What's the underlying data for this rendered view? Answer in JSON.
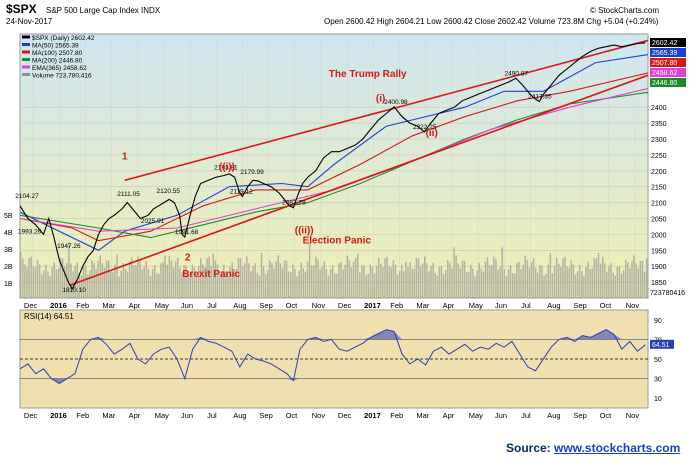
{
  "header": {
    "symbol": "$SPX",
    "name": "S&P 500 Large Cap Index INDX",
    "date": "24-Nov-2017",
    "ohlc": "Open 2600.42  High 2604.21  Low 2600.42  Close 2602.42  Volume 723.8M  Chg +5.04 (+0.24%)",
    "credit": "© StockCharts.com",
    "legend": [
      {
        "label": "$SPX (Daily) 2602.42",
        "color": "#000000"
      },
      {
        "label": "MA(50) 2565.39",
        "color": "#1a3fd6"
      },
      {
        "label": "MA(100) 2507.80",
        "color": "#d41a1a"
      },
      {
        "label": "MA(200) 2446.80",
        "color": "#1f8a2a"
      },
      {
        "label": "EMA(365) 2458.62",
        "color": "#e23fd6"
      },
      {
        "label": "Volume 723,780,416",
        "color": "#8f8f8f"
      }
    ]
  },
  "source": {
    "prefix": "Source: ",
    "link": "www.stockcharts.com"
  },
  "chart_data": [
    {
      "type": "line",
      "title": "$SPX (Daily)",
      "xlabel": "",
      "ylabel": "",
      "x_ticks": [
        "Dec",
        "2016",
        "Feb",
        "Mar",
        "Apr",
        "May",
        "Jun",
        "Jul",
        "Aug",
        "Sep",
        "Oct",
        "Nov",
        "Dec",
        "2017",
        "Feb",
        "Mar",
        "Apr",
        "May",
        "Jun",
        "Jul",
        "Aug",
        "Sep",
        "Oct",
        "Nov"
      ],
      "y_ticks": [
        1850,
        1900,
        1950,
        2000,
        2050,
        2100,
        2150,
        2200,
        2250,
        2300,
        2350,
        2400
      ],
      "ylim": [
        1800,
        2630
      ],
      "grid": true,
      "background_colors": {
        "top": "#cfe6f2",
        "bottom": "#f0f0b0"
      },
      "x_range_months": [
        0,
        24
      ],
      "price_series": {
        "name": "$SPX (Daily)",
        "color": "#000000",
        "points": [
          [
            0,
            2090
          ],
          [
            0.3,
            2050
          ],
          [
            0.6,
            2030
          ],
          [
            0.9,
            2000
          ],
          [
            1.1,
            2050
          ],
          [
            1.3,
            1990
          ],
          [
            1.5,
            1920
          ],
          [
            1.7,
            1880
          ],
          [
            1.85,
            1850
          ],
          [
            2.0,
            1829.1
          ],
          [
            2.2,
            1860
          ],
          [
            2.4,
            1900
          ],
          [
            2.6,
            1930
          ],
          [
            2.8,
            1950
          ],
          [
            3.0,
            2000
          ],
          [
            3.2,
            2030
          ],
          [
            3.4,
            2050
          ],
          [
            3.6,
            2060
          ],
          [
            3.9,
            2080
          ],
          [
            4.1,
            2100
          ],
          [
            4.3,
            2080
          ],
          [
            4.6,
            2050
          ],
          [
            4.9,
            2060
          ],
          [
            5.1,
            2080
          ],
          [
            5.3,
            2090
          ],
          [
            5.5,
            2100
          ],
          [
            5.7,
            2110
          ],
          [
            5.9,
            2100
          ],
          [
            6.1,
            2060
          ],
          [
            6.2,
            2000
          ],
          [
            6.3,
            1991.68
          ],
          [
            6.5,
            2060
          ],
          [
            6.7,
            2120
          ],
          [
            6.9,
            2160
          ],
          [
            7.2,
            2170
          ],
          [
            7.5,
            2180
          ],
          [
            7.8,
            2185
          ],
          [
            8.0,
            2190.1
          ],
          [
            8.2,
            2180
          ],
          [
            8.4,
            2130
          ],
          [
            8.5,
            2119.12
          ],
          [
            8.7,
            2150
          ],
          [
            8.9,
            2170
          ],
          [
            9.1,
            2168
          ],
          [
            9.3,
            2160
          ],
          [
            9.6,
            2150
          ],
          [
            9.9,
            2130
          ],
          [
            10.1,
            2110
          ],
          [
            10.3,
            2090
          ],
          [
            10.45,
            2083.79
          ],
          [
            10.6,
            2120
          ],
          [
            10.8,
            2160
          ],
          [
            11.0,
            2180
          ],
          [
            11.3,
            2200
          ],
          [
            11.6,
            2240
          ],
          [
            11.9,
            2260
          ],
          [
            12.2,
            2260
          ],
          [
            12.5,
            2270
          ],
          [
            12.8,
            2280
          ],
          [
            13.1,
            2300
          ],
          [
            13.4,
            2330
          ],
          [
            13.7,
            2360
          ],
          [
            14.0,
            2380
          ],
          [
            14.3,
            2400.98
          ],
          [
            14.6,
            2370
          ],
          [
            14.9,
            2350
          ],
          [
            15.2,
            2340
          ],
          [
            15.45,
            2322.25
          ],
          [
            15.7,
            2350
          ],
          [
            16.0,
            2380
          ],
          [
            16.3,
            2390
          ],
          [
            16.6,
            2400
          ],
          [
            16.9,
            2420
          ],
          [
            17.2,
            2430
          ],
          [
            17.5,
            2440
          ],
          [
            17.8,
            2450
          ],
          [
            18.1,
            2460
          ],
          [
            18.4,
            2470
          ],
          [
            18.7,
            2480
          ],
          [
            18.95,
            2490.87
          ],
          [
            19.2,
            2470
          ],
          [
            19.5,
            2440
          ],
          [
            19.7,
            2425
          ],
          [
            19.85,
            2417.35
          ],
          [
            20.0,
            2440
          ],
          [
            20.3,
            2470
          ],
          [
            20.6,
            2500
          ],
          [
            20.9,
            2520
          ],
          [
            21.2,
            2540
          ],
          [
            21.5,
            2560
          ],
          [
            21.8,
            2575
          ],
          [
            22.1,
            2585
          ],
          [
            22.4,
            2590
          ],
          [
            22.7,
            2595
          ],
          [
            23.0,
            2590
          ],
          [
            23.3,
            2595
          ],
          [
            23.6,
            2600
          ],
          [
            23.9,
            2602.42
          ]
        ]
      },
      "moving_averages": [
        {
          "name": "MA(50)",
          "color": "#1a3fd6",
          "points": [
            [
              0,
              2070
            ],
            [
              2,
              1990
            ],
            [
              3,
              1950
            ],
            [
              4,
              2010
            ],
            [
              6,
              2060
            ],
            [
              8,
              2150
            ],
            [
              10,
              2160
            ],
            [
              11,
              2150
            ],
            [
              12,
              2220
            ],
            [
              14,
              2340
            ],
            [
              15,
              2360
            ],
            [
              17,
              2400
            ],
            [
              18.5,
              2450
            ],
            [
              20,
              2450
            ],
            [
              22,
              2540
            ],
            [
              24,
              2565.39
            ]
          ]
        },
        {
          "name": "MA(100)",
          "color": "#d41a1a",
          "points": [
            [
              0,
              2050
            ],
            [
              2,
              2020
            ],
            [
              3,
              1980
            ],
            [
              5,
              2010
            ],
            [
              7,
              2090
            ],
            [
              9,
              2140
            ],
            [
              11,
              2140
            ],
            [
              13,
              2220
            ],
            [
              15,
              2310
            ],
            [
              17,
              2370
            ],
            [
              19,
              2420
            ],
            [
              21,
              2450
            ],
            [
              24,
              2507.8
            ]
          ]
        },
        {
          "name": "MA(200)",
          "color": "#1f8a2a",
          "points": [
            [
              0,
              2060
            ],
            [
              3,
              2020
            ],
            [
              5,
              1990
            ],
            [
              7,
              2030
            ],
            [
              9,
              2070
            ],
            [
              11,
              2100
            ],
            [
              13,
              2160
            ],
            [
              15,
              2230
            ],
            [
              17,
              2300
            ],
            [
              19,
              2360
            ],
            [
              21,
              2410
            ],
            [
              24,
              2446.8
            ]
          ]
        },
        {
          "name": "EMA(365)",
          "color": "#e23fd6",
          "points": [
            [
              0,
              2050
            ],
            [
              3,
              2010
            ],
            [
              6,
              2020
            ],
            [
              9,
              2080
            ],
            [
              12,
              2140
            ],
            [
              15,
              2230
            ],
            [
              18,
              2330
            ],
            [
              21,
              2400
            ],
            [
              24,
              2458.62
            ]
          ]
        }
      ],
      "trend_channel": {
        "color": "#e01414",
        "upper": [
          [
            4.0,
            2170
          ],
          [
            24.0,
            2610
          ]
        ],
        "lower": [
          [
            1.9,
            1840
          ],
          [
            24.0,
            2500
          ]
        ]
      },
      "value_labels": [
        {
          "x": 0.2,
          "y": 2104.27,
          "text": "2104.27"
        },
        {
          "x": 0.3,
          "y": 1993.26,
          "text": "1993.26"
        },
        {
          "x": 1.8,
          "y": 1947.26,
          "text": "1947.26"
        },
        {
          "x": 2.0,
          "y": 1810.1,
          "text": "1810.10"
        },
        {
          "x": 4.1,
          "y": 2111.05,
          "text": "2111.05"
        },
        {
          "x": 5.0,
          "y": 2025.91,
          "text": "2025.91"
        },
        {
          "x": 5.6,
          "y": 2120.55,
          "text": "2120.55"
        },
        {
          "x": 6.3,
          "y": 1991.68,
          "text": "1991.68"
        },
        {
          "x": 7.8,
          "y": 2193.81,
          "text": "2193.81"
        },
        {
          "x": 8.4,
          "y": 2119.12,
          "text": "2119.12"
        },
        {
          "x": 8.8,
          "y": 2179.99,
          "text": "2179.99"
        },
        {
          "x": 10.4,
          "y": 2083.79,
          "text": "2083.79"
        },
        {
          "x": 14.3,
          "y": 2400.98,
          "text": "2400.98"
        },
        {
          "x": 15.4,
          "y": 2322.25,
          "text": "2322.25"
        },
        {
          "x": 18.9,
          "y": 2490.87,
          "text": "2490.87"
        },
        {
          "x": 19.8,
          "y": 2417.35,
          "text": "2417.35"
        }
      ],
      "annotations": [
        {
          "x": 11.8,
          "y": 2495,
          "text": "The Trump Rally",
          "color": "#d81818"
        },
        {
          "x": 3.9,
          "y": 2235,
          "text": "1",
          "color": "#d81818"
        },
        {
          "x": 7.6,
          "y": 2203,
          "text": "((i))",
          "color": "#d81818"
        },
        {
          "x": 13.6,
          "y": 2418,
          "text": "(i)",
          "color": "#d81818"
        },
        {
          "x": 15.5,
          "y": 2310,
          "text": "(ii)",
          "color": "#d81818"
        },
        {
          "x": 10.5,
          "y": 2003,
          "text": "((ii))",
          "color": "#d81818"
        },
        {
          "x": 10.8,
          "y": 1972,
          "text": "Election Panic",
          "color": "#d81818"
        },
        {
          "x": 6.3,
          "y": 1918,
          "text": "2",
          "color": "#d81818"
        },
        {
          "x": 6.2,
          "y": 1866,
          "text": "Brexit Panic",
          "color": "#d81818"
        }
      ],
      "left_axis_labels": [
        "5B",
        "4B",
        "3B",
        "2B",
        "1B"
      ],
      "volume_label": "723780416",
      "price_tags": [
        {
          "text": "2602.42",
          "bg": "#000000",
          "fg": "#ffffff"
        },
        {
          "text": "2565.39",
          "bg": "#1a3fd6",
          "fg": "#ffffff"
        },
        {
          "text": "2507.80",
          "bg": "#d41a1a",
          "fg": "#ffffff"
        },
        {
          "text": "2458.62",
          "bg": "#e23fd6",
          "fg": "#ffffff"
        },
        {
          "text": "2446.80",
          "bg": "#1f8a2a",
          "fg": "#ffffff"
        }
      ]
    },
    {
      "type": "line",
      "title": "RSI(14)",
      "legend_label": "RSI(14) 64.51",
      "y_ticks": [
        10,
        30,
        50,
        70,
        90
      ],
      "ylim": [
        0,
        100
      ],
      "overbought": 70,
      "oversold": 30,
      "current_value": "64.51",
      "color": "#2a3fb0",
      "points": [
        [
          0,
          40
        ],
        [
          0.3,
          45
        ],
        [
          0.6,
          35
        ],
        [
          0.9,
          40
        ],
        [
          1.2,
          30
        ],
        [
          1.5,
          25
        ],
        [
          1.8,
          30
        ],
        [
          2.1,
          35
        ],
        [
          2.4,
          60
        ],
        [
          2.7,
          70
        ],
        [
          3.0,
          72
        ],
        [
          3.3,
          65
        ],
        [
          3.6,
          55
        ],
        [
          3.9,
          60
        ],
        [
          4.2,
          66
        ],
        [
          4.5,
          50
        ],
        [
          4.8,
          45
        ],
        [
          5.1,
          55
        ],
        [
          5.4,
          60
        ],
        [
          5.7,
          62
        ],
        [
          6.0,
          50
        ],
        [
          6.3,
          30
        ],
        [
          6.6,
          60
        ],
        [
          6.9,
          72
        ],
        [
          7.2,
          68
        ],
        [
          7.5,
          66
        ],
        [
          7.8,
          62
        ],
        [
          8.1,
          58
        ],
        [
          8.4,
          42
        ],
        [
          8.7,
          55
        ],
        [
          9.0,
          50
        ],
        [
          9.3,
          48
        ],
        [
          9.6,
          45
        ],
        [
          9.9,
          40
        ],
        [
          10.2,
          35
        ],
        [
          10.45,
          28
        ],
        [
          10.7,
          60
        ],
        [
          11.0,
          70
        ],
        [
          11.3,
          72
        ],
        [
          11.6,
          68
        ],
        [
          11.9,
          70
        ],
        [
          12.2,
          60
        ],
        [
          12.5,
          58
        ],
        [
          12.8,
          62
        ],
        [
          13.1,
          66
        ],
        [
          13.4,
          72
        ],
        [
          13.7,
          76
        ],
        [
          14.0,
          80
        ],
        [
          14.3,
          78
        ],
        [
          14.6,
          55
        ],
        [
          14.9,
          45
        ],
        [
          15.2,
          50
        ],
        [
          15.5,
          44
        ],
        [
          15.8,
          58
        ],
        [
          16.1,
          62
        ],
        [
          16.4,
          55
        ],
        [
          16.7,
          60
        ],
        [
          17.0,
          65
        ],
        [
          17.3,
          58
        ],
        [
          17.6,
          62
        ],
        [
          17.9,
          60
        ],
        [
          18.2,
          66
        ],
        [
          18.5,
          62
        ],
        [
          18.8,
          68
        ],
        [
          19.1,
          55
        ],
        [
          19.4,
          42
        ],
        [
          19.7,
          38
        ],
        [
          20.0,
          50
        ],
        [
          20.3,
          62
        ],
        [
          20.6,
          70
        ],
        [
          20.9,
          72
        ],
        [
          21.2,
          68
        ],
        [
          21.5,
          74
        ],
        [
          21.8,
          72
        ],
        [
          22.1,
          76
        ],
        [
          22.4,
          80
        ],
        [
          22.7,
          75
        ],
        [
          23.0,
          60
        ],
        [
          23.3,
          68
        ],
        [
          23.6,
          58
        ],
        [
          23.9,
          64.51
        ]
      ]
    }
  ]
}
